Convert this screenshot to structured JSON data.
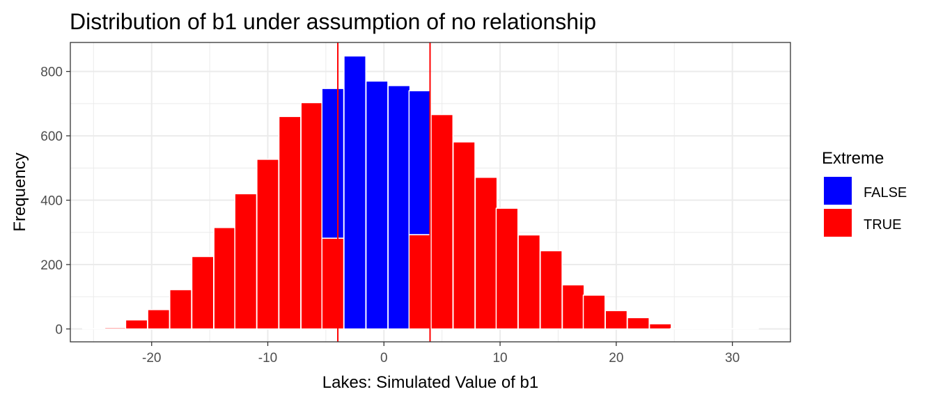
{
  "chart_data": {
    "type": "bar",
    "title": "Distribution of b1 under assumption of no relationship",
    "xlabel": "Lakes: Simulated Value of b1",
    "ylabel": "Frequency",
    "xlim": [
      -27,
      35
    ],
    "ylim": [
      -40,
      890
    ],
    "x_ticks": [
      -20,
      -10,
      0,
      10,
      20,
      30
    ],
    "x_tick_labels": [
      "-20",
      "-10",
      "0",
      "10",
      "20",
      "30"
    ],
    "y_ticks": [
      0,
      200,
      400,
      600,
      800
    ],
    "y_tick_labels": [
      "0",
      "200",
      "400",
      "600",
      "800"
    ],
    "grid": true,
    "legend": {
      "title": "Extreme",
      "position": "right",
      "items": [
        {
          "label": "FALSE",
          "color": "#0000FF"
        },
        {
          "label": "TRUE",
          "color": "#FF0000"
        }
      ]
    },
    "colors": {
      "FALSE": "#0000FF",
      "TRUE": "#FF0000",
      "vline": "#FF0000"
    },
    "vlines": [
      -3.97,
      3.97
    ],
    "bin_width": 1.875,
    "bin_centers": [
      -25.0,
      -23.1,
      -21.3,
      -19.4,
      -17.5,
      -15.6,
      -13.7,
      -11.9,
      -10.0,
      -8.1,
      -6.2,
      -4.4,
      -2.5,
      -0.6,
      1.3,
      3.1,
      5.0,
      6.9,
      8.8,
      10.6,
      12.5,
      14.4,
      16.3,
      18.1,
      20.0,
      21.9,
      23.8,
      25.6,
      27.5,
      29.4,
      31.3
    ],
    "series": [
      {
        "name": "FALSE",
        "values": [
          0,
          0,
          0,
          0,
          0,
          0,
          0,
          0,
          0,
          0,
          0,
          465,
          848,
          770,
          756,
          447,
          0,
          0,
          0,
          0,
          0,
          0,
          0,
          0,
          0,
          0,
          0,
          0,
          0,
          0,
          0
        ]
      },
      {
        "name": "TRUE",
        "values": [
          1,
          4,
          28,
          60,
          122,
          225,
          315,
          420,
          527,
          660,
          703,
          282,
          0,
          0,
          0,
          293,
          666,
          581,
          471,
          375,
          292,
          243,
          137,
          105,
          57,
          35,
          16,
          1,
          1,
          1,
          1
        ]
      }
    ]
  }
}
